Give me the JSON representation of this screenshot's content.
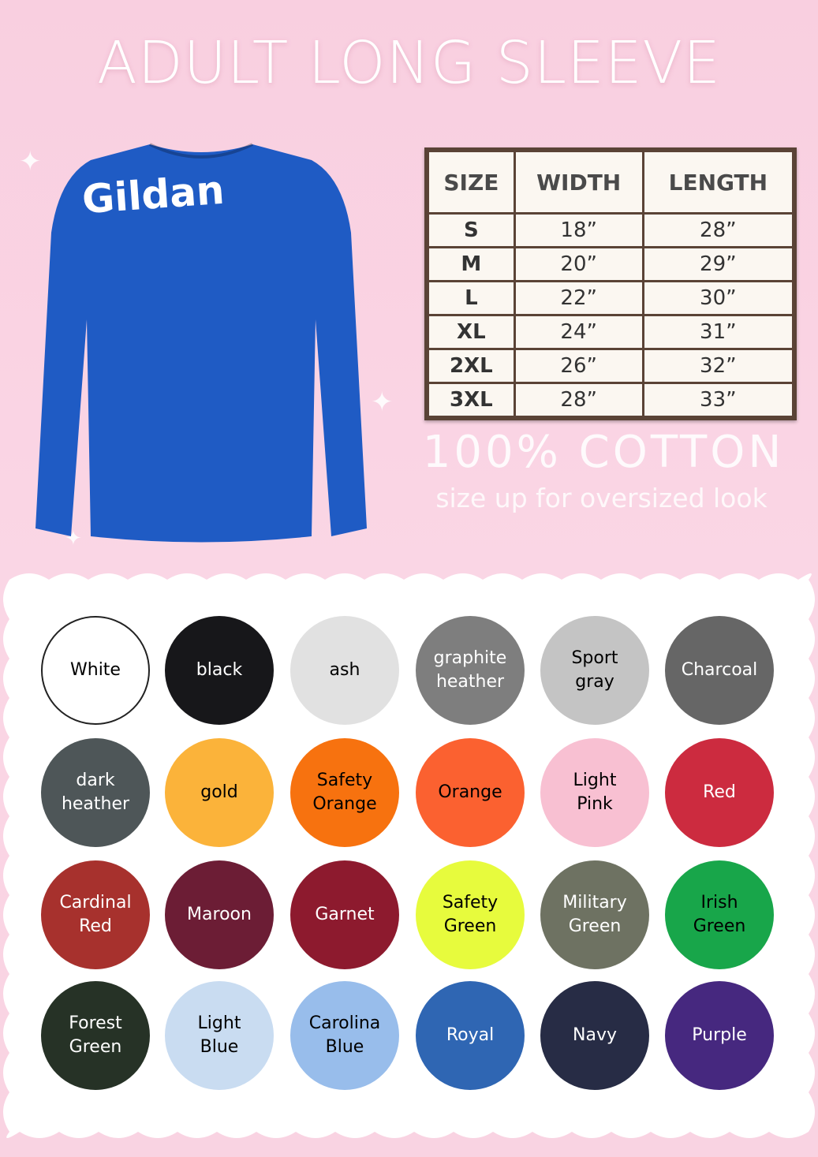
{
  "title": "ADULT LONG SLEEVE",
  "brand": "Gildan",
  "product_color": "#1f5bc4",
  "size_chart": {
    "headers": [
      "SIZE",
      "WIDTH",
      "LENGTH"
    ],
    "rows": [
      [
        "S",
        "18”",
        "28”"
      ],
      [
        "M",
        "20”",
        "29”"
      ],
      [
        "L",
        "22”",
        "30”"
      ],
      [
        "XL",
        "24”",
        "31”"
      ],
      [
        "2XL",
        "26”",
        "32”"
      ],
      [
        "3XL",
        "28”",
        "33”"
      ]
    ]
  },
  "material": "100% COTTON",
  "note": "size up for oversized look",
  "colors": [
    {
      "name": "White",
      "hex": "#ffffff",
      "text": "#000000"
    },
    {
      "name": "black",
      "hex": "#17171a",
      "text": "#ffffff"
    },
    {
      "name": "ash",
      "hex": "#e1e1e1",
      "text": "#000000"
    },
    {
      "name": "graphite\nheather",
      "hex": "#7e7e7e",
      "text": "#ffffff"
    },
    {
      "name": "Sport\ngray",
      "hex": "#c4c4c4",
      "text": "#000000"
    },
    {
      "name": "Charcoal",
      "hex": "#666666",
      "text": "#ffffff"
    },
    {
      "name": "dark\nheather",
      "hex": "#4e5658",
      "text": "#ffffff"
    },
    {
      "name": "gold",
      "hex": "#fbb33a",
      "text": "#000000"
    },
    {
      "name": "Safety\nOrange",
      "hex": "#f7720f",
      "text": "#000000"
    },
    {
      "name": "Orange",
      "hex": "#fb6130",
      "text": "#000000"
    },
    {
      "name": "Light\nPink",
      "hex": "#f8c0d2",
      "text": "#000000"
    },
    {
      "name": "Red",
      "hex": "#cc2b3f",
      "text": "#ffffff"
    },
    {
      "name": "Cardinal\nRed",
      "hex": "#a7312d",
      "text": "#ffffff"
    },
    {
      "name": "Maroon",
      "hex": "#6c1d35",
      "text": "#ffffff"
    },
    {
      "name": "Garnet",
      "hex": "#8d1a2e",
      "text": "#ffffff"
    },
    {
      "name": "Safety\nGreen",
      "hex": "#e7fb3d",
      "text": "#000000"
    },
    {
      "name": "Military\nGreen",
      "hex": "#6e7262",
      "text": "#ffffff"
    },
    {
      "name": "Irish\nGreen",
      "hex": "#18a64a",
      "text": "#000000"
    },
    {
      "name": "Forest\nGreen",
      "hex": "#263226",
      "text": "#ffffff"
    },
    {
      "name": "Light\nBlue",
      "hex": "#c9dcf1",
      "text": "#000000"
    },
    {
      "name": "Carolina\nBlue",
      "hex": "#98bdeb",
      "text": "#000000"
    },
    {
      "name": "Royal",
      "hex": "#2f66b3",
      "text": "#ffffff"
    },
    {
      "name": "Navy",
      "hex": "#272c45",
      "text": "#ffffff"
    },
    {
      "name": "Purple",
      "hex": "#46287f",
      "text": "#ffffff"
    }
  ]
}
